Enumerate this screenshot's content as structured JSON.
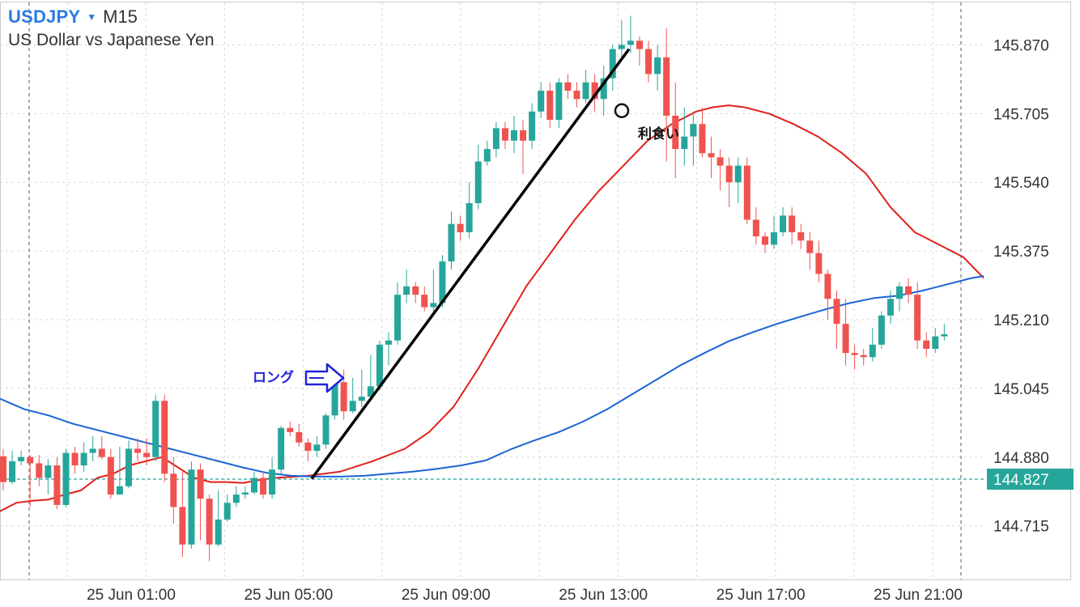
{
  "header": {
    "symbol": "USDJPY",
    "dropdown_icon": "caret-down-icon",
    "timeframe": "M15",
    "name": "US Dollar vs Japanese Yen"
  },
  "colors": {
    "bull": "#26a69a",
    "bear": "#ef5350",
    "ma_fast": "#e0201c",
    "ma_slow": "#1a64d4",
    "grid": "#d9d9d9",
    "current_price": "#26a69a",
    "annotation_arrow": "#2222dd",
    "trend_line": "#000000"
  },
  "chart_data": {
    "type": "candlestick",
    "symbol": "USDJPY",
    "timeframe": "M15",
    "y_ticks": [
      "145.870",
      "145.705",
      "145.540",
      "145.375",
      "145.210",
      "145.045",
      "144.880",
      "144.715"
    ],
    "ylim": [
      144.586,
      145.972
    ],
    "x_ticks": [
      "25 Jun 01:00",
      "25 Jun 05:00",
      "25 Jun 09:00",
      "25 Jun 13:00",
      "25 Jun 17:00",
      "25 Jun 21:00"
    ],
    "current_price": "144.827",
    "candles": [
      [
        144.882,
        144.82,
        144.9,
        144.8
      ],
      [
        144.82,
        144.87,
        144.895,
        144.815
      ],
      [
        144.87,
        144.88,
        144.895,
        144.86
      ],
      [
        144.88,
        144.865,
        144.885,
        144.76
      ],
      [
        144.865,
        144.83,
        144.885,
        144.81
      ],
      [
        144.83,
        144.86,
        144.875,
        144.79
      ],
      [
        144.86,
        144.765,
        144.88,
        144.755
      ],
      [
        144.765,
        144.89,
        144.9,
        144.76
      ],
      [
        144.89,
        144.86,
        144.905,
        144.84
      ],
      [
        144.86,
        144.89,
        144.915,
        144.845
      ],
      [
        144.89,
        144.9,
        144.93,
        144.87
      ],
      [
        144.9,
        144.88,
        144.93,
        144.875
      ],
      [
        144.88,
        144.79,
        144.9,
        144.78
      ],
      [
        144.79,
        144.81,
        144.905,
        144.79
      ],
      [
        144.81,
        144.9,
        144.92,
        144.805
      ],
      [
        144.9,
        144.89,
        144.925,
        144.87
      ],
      [
        144.89,
        144.88,
        144.925,
        144.86
      ],
      [
        144.88,
        145.015,
        145.03,
        144.87
      ],
      [
        145.015,
        144.84,
        145.03,
        144.82
      ],
      [
        144.84,
        144.76,
        144.88,
        144.72
      ],
      [
        144.76,
        144.67,
        144.85,
        144.64
      ],
      [
        144.67,
        144.85,
        144.87,
        144.66
      ],
      [
        144.85,
        144.78,
        144.865,
        144.68
      ],
      [
        144.78,
        144.67,
        144.79,
        144.63
      ],
      [
        144.67,
        144.73,
        144.8,
        144.665
      ],
      [
        144.73,
        144.77,
        144.79,
        144.725
      ],
      [
        144.77,
        144.79,
        144.81,
        144.76
      ],
      [
        144.79,
        144.795,
        144.81,
        144.78
      ],
      [
        144.795,
        144.83,
        144.845,
        144.79
      ],
      [
        144.83,
        144.79,
        144.845,
        144.78
      ],
      [
        144.79,
        144.85,
        144.88,
        144.78
      ],
      [
        144.85,
        144.95,
        144.955,
        144.84
      ],
      [
        144.95,
        144.94,
        144.965,
        144.93
      ],
      [
        144.94,
        144.915,
        144.96,
        144.905
      ],
      [
        144.915,
        144.895,
        144.925,
        144.87
      ],
      [
        144.895,
        144.91,
        144.93,
        144.88
      ],
      [
        144.91,
        144.98,
        144.985,
        144.9
      ],
      [
        144.98,
        145.06,
        145.09,
        144.97
      ],
      [
        145.06,
        144.99,
        145.09,
        144.97
      ],
      [
        144.99,
        145.015,
        145.07,
        144.985
      ],
      [
        145.015,
        145.025,
        145.09,
        145.0
      ],
      [
        145.025,
        145.05,
        145.125,
        145.02
      ],
      [
        145.05,
        145.15,
        145.16,
        145.04
      ],
      [
        145.15,
        145.16,
        145.18,
        145.1
      ],
      [
        145.16,
        145.27,
        145.3,
        145.15
      ],
      [
        145.27,
        145.29,
        145.33,
        145.25
      ],
      [
        145.29,
        145.27,
        145.3,
        145.25
      ],
      [
        145.27,
        145.24,
        145.29,
        145.23
      ],
      [
        145.24,
        145.25,
        145.33,
        145.225
      ],
      [
        145.25,
        145.35,
        145.365,
        145.24
      ],
      [
        145.35,
        145.44,
        145.47,
        145.33
      ],
      [
        145.44,
        145.42,
        145.46,
        145.4
      ],
      [
        145.42,
        145.49,
        145.54,
        145.405
      ],
      [
        145.49,
        145.59,
        145.63,
        145.475
      ],
      [
        145.59,
        145.62,
        145.64,
        145.58
      ],
      [
        145.62,
        145.67,
        145.685,
        145.6
      ],
      [
        145.67,
        145.64,
        145.685,
        145.62
      ],
      [
        145.64,
        145.665,
        145.7,
        145.61
      ],
      [
        145.665,
        145.64,
        145.69,
        145.56
      ],
      [
        145.64,
        145.71,
        145.73,
        145.62
      ],
      [
        145.71,
        145.76,
        145.78,
        145.695
      ],
      [
        145.76,
        145.69,
        145.78,
        145.67
      ],
      [
        145.69,
        145.78,
        145.79,
        145.67
      ],
      [
        145.78,
        145.76,
        145.8,
        145.74
      ],
      [
        145.76,
        145.74,
        145.78,
        145.72
      ],
      [
        145.74,
        145.78,
        145.81,
        145.73
      ],
      [
        145.78,
        145.74,
        145.8,
        145.71
      ],
      [
        145.74,
        145.79,
        145.82,
        145.7
      ],
      [
        145.79,
        145.86,
        145.87,
        145.76
      ],
      [
        145.86,
        145.87,
        145.93,
        145.84
      ],
      [
        145.87,
        145.88,
        145.94,
        145.85
      ],
      [
        145.88,
        145.86,
        145.89,
        145.82
      ],
      [
        145.86,
        145.8,
        145.88,
        145.78
      ],
      [
        145.8,
        145.84,
        145.87,
        145.76
      ],
      [
        145.84,
        145.7,
        145.91,
        145.59
      ],
      [
        145.7,
        145.62,
        145.78,
        145.55
      ],
      [
        145.62,
        145.65,
        145.72,
        145.58
      ],
      [
        145.65,
        145.68,
        145.71,
        145.58
      ],
      [
        145.68,
        145.61,
        145.72,
        145.6
      ],
      [
        145.61,
        145.6,
        145.65,
        145.55
      ],
      [
        145.6,
        145.58,
        145.62,
        145.52
      ],
      [
        145.58,
        145.54,
        145.6,
        145.48
      ],
      [
        145.54,
        145.58,
        145.6,
        145.49
      ],
      [
        145.58,
        145.45,
        145.6,
        145.44
      ],
      [
        145.45,
        145.41,
        145.48,
        145.39
      ],
      [
        145.41,
        145.39,
        145.42,
        145.37
      ],
      [
        145.39,
        145.42,
        145.46,
        145.38
      ],
      [
        145.42,
        145.46,
        145.48,
        145.41
      ],
      [
        145.46,
        145.42,
        145.48,
        145.39
      ],
      [
        145.42,
        145.4,
        145.44,
        145.38
      ],
      [
        145.4,
        145.37,
        145.42,
        145.33
      ],
      [
        145.37,
        145.32,
        145.4,
        145.3
      ],
      [
        145.32,
        145.26,
        145.33,
        145.21
      ],
      [
        145.26,
        145.2,
        145.28,
        145.14
      ],
      [
        145.2,
        145.13,
        145.26,
        145.1
      ],
      [
        145.13,
        145.125,
        145.15,
        145.09
      ],
      [
        145.125,
        145.12,
        145.14,
        145.1
      ],
      [
        145.12,
        145.15,
        145.19,
        145.11
      ],
      [
        145.15,
        145.22,
        145.23,
        145.14
      ],
      [
        145.22,
        145.26,
        145.28,
        145.2
      ],
      [
        145.26,
        145.29,
        145.3,
        145.23
      ],
      [
        145.29,
        145.27,
        145.31,
        145.25
      ],
      [
        145.27,
        145.16,
        145.3,
        145.14
      ],
      [
        145.16,
        145.14,
        145.18,
        145.12
      ],
      [
        145.14,
        145.17,
        145.19,
        145.13
      ],
      [
        145.17,
        145.175,
        145.2,
        145.16
      ]
    ],
    "series": [
      {
        "values": [
          [
            0,
            144.75
          ],
          [
            20,
            144.77
          ],
          [
            40,
            144.775
          ],
          [
            60,
            144.778
          ],
          [
            80,
            144.79
          ],
          [
            100,
            144.8
          ],
          [
            120,
            144.83
          ],
          [
            140,
            144.84
          ],
          [
            160,
            144.86
          ],
          [
            180,
            144.87
          ],
          [
            200,
            144.88
          ],
          [
            220,
            144.855
          ],
          [
            240,
            144.83
          ],
          [
            260,
            144.82
          ],
          [
            280,
            144.82
          ],
          [
            300,
            144.818
          ],
          [
            320,
            144.825
          ],
          [
            340,
            144.83
          ],
          [
            380,
            144.835
          ],
          [
            420,
            144.845
          ],
          [
            460,
            144.87
          ],
          [
            500,
            144.9
          ],
          [
            530,
            144.94
          ],
          [
            560,
            145.0
          ],
          [
            590,
            145.09
          ],
          [
            620,
            145.19
          ],
          [
            650,
            145.29
          ],
          [
            680,
            145.37
          ],
          [
            710,
            145.45
          ],
          [
            740,
            145.52
          ],
          [
            770,
            145.58
          ],
          [
            800,
            145.64
          ],
          [
            830,
            145.68
          ],
          [
            860,
            145.71
          ],
          [
            880,
            145.72
          ],
          [
            900,
            145.725
          ],
          [
            920,
            145.72
          ],
          [
            950,
            145.705
          ],
          [
            980,
            145.68
          ],
          [
            1010,
            145.65
          ],
          [
            1040,
            145.61
          ],
          [
            1070,
            145.56
          ],
          [
            1100,
            145.48
          ],
          [
            1130,
            145.42
          ],
          [
            1160,
            145.39
          ],
          [
            1190,
            145.36
          ],
          [
            1215,
            145.31
          ]
        ]
      },
      {
        "values": [
          [
            0,
            145.02
          ],
          [
            30,
            144.995
          ],
          [
            60,
            144.98
          ],
          [
            90,
            144.96
          ],
          [
            120,
            144.945
          ],
          [
            150,
            144.93
          ],
          [
            180,
            144.915
          ],
          [
            210,
            144.9
          ],
          [
            240,
            144.885
          ],
          [
            270,
            144.87
          ],
          [
            300,
            144.855
          ],
          [
            330,
            144.842
          ],
          [
            360,
            144.835
          ],
          [
            390,
            144.833
          ],
          [
            420,
            144.833
          ],
          [
            450,
            144.835
          ],
          [
            480,
            144.84
          ],
          [
            510,
            144.845
          ],
          [
            540,
            144.852
          ],
          [
            570,
            144.86
          ],
          [
            600,
            144.872
          ],
          [
            630,
            144.898
          ],
          [
            660,
            144.92
          ],
          [
            690,
            144.94
          ],
          [
            720,
            144.965
          ],
          [
            750,
            144.995
          ],
          [
            780,
            145.03
          ],
          [
            810,
            145.065
          ],
          [
            840,
            145.1
          ],
          [
            870,
            145.13
          ],
          [
            900,
            145.158
          ],
          [
            930,
            145.18
          ],
          [
            960,
            145.2
          ],
          [
            990,
            145.218
          ],
          [
            1020,
            145.235
          ],
          [
            1050,
            145.25
          ],
          [
            1080,
            145.262
          ],
          [
            1110,
            145.268
          ],
          [
            1140,
            145.28
          ],
          [
            1170,
            145.295
          ],
          [
            1200,
            145.31
          ],
          [
            1215,
            145.315
          ]
        ]
      }
    ],
    "annotations": {
      "long_label": "ロング",
      "take_profit_label": "利食い",
      "trend_line_from": [
        144.828,
        145.86
      ],
      "take_profit_price": 145.712
    }
  }
}
